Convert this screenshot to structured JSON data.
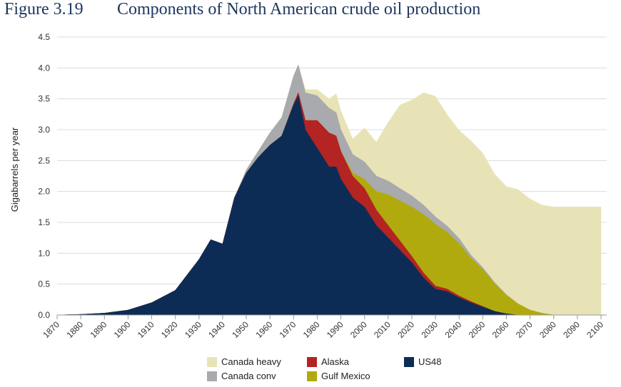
{
  "figure": {
    "number": "Figure 3.19",
    "title": "Components of North American crude oil production"
  },
  "colors": {
    "canada_heavy": "#e8e3b6",
    "canada_conv": "#a8aaae",
    "alaska": "#b32422",
    "gulf_mexico": "#b1aa0e",
    "us48": "#0d2c55",
    "title": "#1e3760",
    "grid": "#d8d8d8"
  },
  "chart_data": {
    "type": "area",
    "stacked": true,
    "title": "Components of North American crude oil production",
    "ylabel": "Gigabarrels per year",
    "xlabel": "",
    "ylim": [
      0,
      4.5
    ],
    "xlim": [
      1870,
      2100
    ],
    "grid": "horizontal",
    "legend_position": "bottom",
    "yticks": [
      "0.0",
      "0.5",
      "1.0",
      "1.5",
      "2.0",
      "2.5",
      "3.0",
      "3.5",
      "4.0",
      "4.5"
    ],
    "xticks": [
      "1870",
      "1880",
      "1890",
      "1900",
      "1910",
      "1920",
      "1930",
      "1940",
      "1950",
      "1960",
      "1970",
      "1980",
      "1990",
      "2000",
      "2010",
      "2020",
      "2030",
      "2040",
      "2050",
      "2060",
      "2070",
      "2080",
      "2090",
      "2100"
    ],
    "x": [
      1870,
      1880,
      1890,
      1900,
      1910,
      1920,
      1925,
      1930,
      1935,
      1940,
      1945,
      1950,
      1955,
      1960,
      1965,
      1970,
      1972,
      1975,
      1980,
      1985,
      1988,
      1990,
      1995,
      2000,
      2005,
      2010,
      2015,
      2020,
      2025,
      2030,
      2035,
      2040,
      2045,
      2050,
      2055,
      2060,
      2065,
      2070,
      2075,
      2080,
      2085,
      2090,
      2095,
      2100
    ],
    "series": [
      {
        "name": "US48",
        "color": "#0d2c55",
        "values": [
          0,
          0.01,
          0.03,
          0.08,
          0.2,
          0.4,
          0.65,
          0.9,
          1.22,
          1.15,
          1.9,
          2.3,
          2.55,
          2.75,
          2.9,
          3.4,
          3.55,
          3.0,
          2.7,
          2.4,
          2.4,
          2.2,
          1.9,
          1.75,
          1.45,
          1.25,
          1.05,
          0.85,
          0.6,
          0.42,
          0.38,
          0.28,
          0.2,
          0.13,
          0.06,
          0.02,
          0,
          0,
          0,
          0,
          0,
          0,
          0,
          0
        ]
      },
      {
        "name": "Alaska",
        "color": "#b32422",
        "values": [
          0,
          0,
          0,
          0,
          0,
          0,
          0,
          0,
          0,
          0,
          0,
          0,
          0,
          0,
          0,
          0.02,
          0.05,
          0.15,
          0.45,
          0.55,
          0.5,
          0.45,
          0.35,
          0.3,
          0.25,
          0.2,
          0.15,
          0.1,
          0.08,
          0.05,
          0.04,
          0.03,
          0.02,
          0.01,
          0,
          0,
          0,
          0,
          0,
          0,
          0,
          0,
          0,
          0
        ]
      },
      {
        "name": "Gulf Mexico",
        "color": "#b1aa0e",
        "values": [
          0,
          0,
          0,
          0,
          0,
          0,
          0,
          0,
          0,
          0,
          0,
          0,
          0,
          0,
          0,
          0,
          0,
          0,
          0,
          0,
          0,
          0,
          0.05,
          0.15,
          0.3,
          0.5,
          0.65,
          0.8,
          0.95,
          1.0,
          0.92,
          0.85,
          0.7,
          0.6,
          0.45,
          0.3,
          0.18,
          0.08,
          0.03,
          0,
          0,
          0,
          0,
          0
        ]
      },
      {
        "name": "Canada conv",
        "color": "#a8aaae",
        "values": [
          0,
          0,
          0,
          0,
          0,
          0,
          0,
          0,
          0,
          0,
          0,
          0.05,
          0.1,
          0.2,
          0.3,
          0.45,
          0.45,
          0.45,
          0.4,
          0.4,
          0.38,
          0.35,
          0.3,
          0.28,
          0.25,
          0.22,
          0.2,
          0.18,
          0.15,
          0.12,
          0.1,
          0.08,
          0.05,
          0.03,
          0.02,
          0.01,
          0,
          0,
          0,
          0,
          0,
          0,
          0,
          0
        ]
      },
      {
        "name": "Canada heavy",
        "color": "#e8e3b6",
        "values": [
          0,
          0,
          0,
          0,
          0,
          0,
          0,
          0,
          0,
          0,
          0,
          0,
          0,
          0,
          0,
          0,
          0,
          0.05,
          0.1,
          0.15,
          0.3,
          0.3,
          0.25,
          0.55,
          0.55,
          0.95,
          1.35,
          1.55,
          1.82,
          1.95,
          1.8,
          1.75,
          1.85,
          1.85,
          1.75,
          1.75,
          1.85,
          1.8,
          1.75,
          1.75,
          1.75,
          1.75,
          1.75,
          1.75
        ]
      }
    ]
  },
  "legend": [
    {
      "label": "Canada heavy",
      "color": "#e8e3b6"
    },
    {
      "label": "Alaska",
      "color": "#b32422"
    },
    {
      "label": "US48",
      "color": "#0d2c55"
    },
    {
      "label": "Canada conv",
      "color": "#a8aaae"
    },
    {
      "label": "Gulf Mexico",
      "color": "#b1aa0e"
    }
  ]
}
